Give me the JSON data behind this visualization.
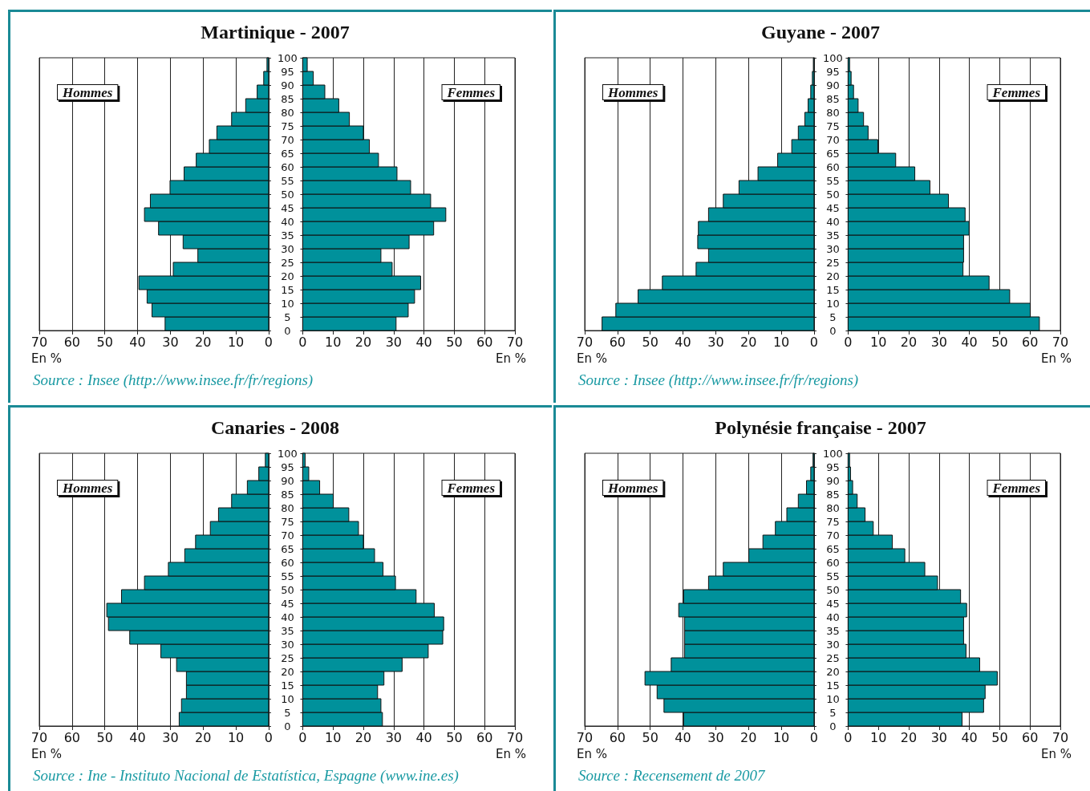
{
  "chart_data": [
    {
      "type": "bar",
      "orientation": "horizontal",
      "title": "Martinique - 2007",
      "xlabel": "En %",
      "annotations": [
        "Hommes",
        "Source : Insee (http://www.insee.fr/fr/regions)"
      ],
      "color": "#00919b",
      "x": [
        2.5,
        7.5,
        12.5,
        17.5,
        22.5,
        27.5,
        32.5,
        37.5,
        42.5,
        47.5,
        52.5,
        57.5,
        62.5,
        67.5,
        72.5,
        77.5,
        82.5,
        87.5,
        92.5,
        97.5
      ],
      "values": [
        31.6,
        35.6,
        37.1,
        39.6,
        29.1,
        21.6,
        26.1,
        33.6,
        37.9,
        36.1,
        30.1,
        25.8,
        22.1,
        18.1,
        15.8,
        11.3,
        7.0,
        3.5,
        1.5,
        0.5
      ],
      "xlim": [
        70,
        0
      ],
      "xticks": [
        0,
        10,
        20,
        30,
        40,
        50,
        60,
        70
      ],
      "ylim": [
        0,
        100
      ],
      "yticks": [
        0,
        5,
        10,
        15,
        20,
        25,
        30,
        35,
        40,
        45,
        50,
        55,
        60,
        65,
        70,
        75,
        80,
        85,
        90,
        95,
        100
      ],
      "grid": "x",
      "tick_labels": "x"
    },
    {
      "type": "bar",
      "orientation": "horizontal",
      "xlabel": "En %",
      "annotations": [
        "Femmes"
      ],
      "color": "#00919b",
      "x": [
        2.5,
        7.5,
        12.5,
        17.5,
        22.5,
        27.5,
        32.5,
        37.5,
        42.5,
        47.5,
        52.5,
        57.5,
        62.5,
        67.5,
        72.5,
        77.5,
        82.5,
        87.5,
        92.5,
        97.5
      ],
      "values": [
        30.8,
        34.8,
        36.9,
        38.9,
        29.5,
        25.8,
        35.1,
        43.2,
        47.2,
        42.2,
        35.6,
        31.1,
        25.0,
        22.0,
        20.0,
        15.4,
        11.9,
        7.3,
        3.5,
        1.5
      ],
      "xlim": [
        0,
        70
      ],
      "xticks": [
        0,
        10,
        20,
        30,
        40,
        50,
        60,
        70
      ],
      "ylim": [
        0,
        100
      ],
      "yticks": [
        0,
        5,
        10,
        15,
        20,
        25,
        30,
        35,
        40,
        45,
        50,
        55,
        60,
        65,
        70,
        75,
        80,
        85,
        90,
        95,
        100
      ],
      "grid": "x"
    },
    {
      "type": "bar",
      "orientation": "horizontal",
      "title": "Guyane - 2007",
      "xlabel": "En %",
      "annotations": [
        "Hommes",
        "Source : Insee (http://www.insee.fr/fr/regions)"
      ],
      "color": "#00919b",
      "x": [
        2.5,
        7.5,
        12.5,
        17.5,
        22.5,
        27.5,
        32.5,
        37.5,
        42.5,
        47.5,
        52.5,
        57.5,
        62.5,
        67.5,
        72.5,
        77.5,
        82.5,
        87.5,
        92.5,
        97.5
      ],
      "values": [
        64.7,
        60.5,
        53.7,
        46.3,
        36.0,
        32.2,
        35.5,
        35.3,
        32.2,
        27.7,
        22.9,
        17.1,
        11.1,
        6.8,
        4.8,
        2.8,
        1.8,
        1.0,
        0.5,
        0.2
      ],
      "xlim": [
        70,
        0
      ],
      "xticks": [
        0,
        10,
        20,
        30,
        40,
        50,
        60,
        70
      ],
      "ylim": [
        0,
        100
      ],
      "yticks": [
        0,
        5,
        10,
        15,
        20,
        25,
        30,
        35,
        40,
        45,
        50,
        55,
        60,
        65,
        70,
        75,
        80,
        85,
        90,
        95,
        100
      ],
      "grid": "x",
      "tick_labels": "x"
    },
    {
      "type": "bar",
      "orientation": "horizontal",
      "xlabel": "En %",
      "annotations": [
        "Femmes"
      ],
      "color": "#00919b",
      "x": [
        2.5,
        7.5,
        12.5,
        17.5,
        22.5,
        27.5,
        32.5,
        37.5,
        42.5,
        47.5,
        52.5,
        57.5,
        62.5,
        67.5,
        72.5,
        77.5,
        82.5,
        87.5,
        92.5,
        97.5
      ],
      "values": [
        63.1,
        60.1,
        53.3,
        46.5,
        37.9,
        38.1,
        38.1,
        39.9,
        38.6,
        33.1,
        27.0,
        22.0,
        15.7,
        9.8,
        6.6,
        5.1,
        3.3,
        1.8,
        1.0,
        0.5
      ],
      "xlim": [
        0,
        70
      ],
      "xticks": [
        0,
        10,
        20,
        30,
        40,
        50,
        60,
        70
      ],
      "ylim": [
        0,
        100
      ],
      "yticks": [
        0,
        5,
        10,
        15,
        20,
        25,
        30,
        35,
        40,
        45,
        50,
        55,
        60,
        65,
        70,
        75,
        80,
        85,
        90,
        95,
        100
      ],
      "grid": "x"
    },
    {
      "type": "bar",
      "orientation": "horizontal",
      "title": "Canaries - 2008",
      "xlabel": "En %",
      "annotations": [
        "Hommes",
        "Source : Ine - Instituto Nacional de Estatística, Espagne (www.ine.es)"
      ],
      "color": "#00919b",
      "x": [
        2.5,
        7.5,
        12.5,
        17.5,
        22.5,
        27.5,
        32.5,
        37.5,
        42.5,
        47.5,
        52.5,
        57.5,
        62.5,
        67.5,
        72.5,
        77.5,
        82.5,
        87.5,
        92.5,
        97.5
      ],
      "values": [
        27.3,
        26.6,
        25.1,
        25.1,
        28.1,
        32.9,
        42.4,
        48.9,
        49.4,
        44.9,
        37.9,
        30.6,
        25.6,
        22.3,
        17.8,
        15.3,
        11.3,
        6.5,
        3.0,
        1.0
      ],
      "xlim": [
        70,
        0
      ],
      "xticks": [
        0,
        10,
        20,
        30,
        40,
        50,
        60,
        70
      ],
      "ylim": [
        0,
        100
      ],
      "yticks": [
        0,
        5,
        10,
        15,
        20,
        25,
        30,
        35,
        40,
        45,
        50,
        55,
        60,
        65,
        70,
        75,
        80,
        85,
        90,
        95,
        100
      ],
      "grid": "x",
      "tick_labels": "x"
    },
    {
      "type": "bar",
      "orientation": "horizontal",
      "xlabel": "En %",
      "annotations": [
        "Femmes"
      ],
      "color": "#00919b",
      "x": [
        2.5,
        7.5,
        12.5,
        17.5,
        22.5,
        27.5,
        32.5,
        37.5,
        42.5,
        47.5,
        52.5,
        57.5,
        62.5,
        67.5,
        72.5,
        77.5,
        82.5,
        87.5,
        92.5,
        97.5
      ],
      "values": [
        26.3,
        25.8,
        24.7,
        26.8,
        32.8,
        41.4,
        46.2,
        46.5,
        43.4,
        37.4,
        30.6,
        26.5,
        23.7,
        20.0,
        18.4,
        15.2,
        10.1,
        5.6,
        2.0,
        0.8
      ],
      "xlim": [
        0,
        70
      ],
      "xticks": [
        0,
        10,
        20,
        30,
        40,
        50,
        60,
        70
      ],
      "ylim": [
        0,
        100
      ],
      "yticks": [
        0,
        5,
        10,
        15,
        20,
        25,
        30,
        35,
        40,
        45,
        50,
        55,
        60,
        65,
        70,
        75,
        80,
        85,
        90,
        95,
        100
      ],
      "grid": "x"
    },
    {
      "type": "bar",
      "orientation": "horizontal",
      "title": "Polynésie française - 2007",
      "xlabel": "En %",
      "annotations": [
        "Hommes",
        "Source : Recensement de 2007"
      ],
      "color": "#00919b",
      "x": [
        2.5,
        7.5,
        12.5,
        17.5,
        22.5,
        27.5,
        32.5,
        37.5,
        42.5,
        47.5,
        52.5,
        57.5,
        62.5,
        67.5,
        72.5,
        77.5,
        82.5,
        87.5,
        92.5,
        97.5
      ],
      "values": [
        39.8,
        45.8,
        47.9,
        51.6,
        43.6,
        39.5,
        39.5,
        39.5,
        41.3,
        39.8,
        32.2,
        27.7,
        19.9,
        15.6,
        11.8,
        8.3,
        4.8,
        2.3,
        1.0,
        0.3
      ],
      "xlim": [
        70,
        0
      ],
      "xticks": [
        0,
        10,
        20,
        30,
        40,
        50,
        60,
        70
      ],
      "ylim": [
        0,
        100
      ],
      "yticks": [
        0,
        5,
        10,
        15,
        20,
        25,
        30,
        35,
        40,
        45,
        50,
        55,
        60,
        65,
        70,
        75,
        80,
        85,
        90,
        95,
        100
      ],
      "grid": "x",
      "tick_labels": "x"
    },
    {
      "type": "bar",
      "orientation": "horizontal",
      "xlabel": "En %",
      "annotations": [
        "Femmes"
      ],
      "color": "#00919b",
      "x": [
        2.5,
        7.5,
        12.5,
        17.5,
        22.5,
        27.5,
        32.5,
        37.5,
        42.5,
        47.5,
        52.5,
        57.5,
        62.5,
        67.5,
        72.5,
        77.5,
        82.5,
        87.5,
        92.5,
        97.5
      ],
      "values": [
        37.6,
        44.7,
        45.2,
        49.2,
        43.4,
        38.9,
        38.1,
        38.1,
        39.1,
        37.1,
        29.5,
        25.3,
        18.7,
        14.6,
        8.3,
        5.6,
        3.0,
        1.5,
        0.8,
        0.5
      ],
      "xlim": [
        0,
        70
      ],
      "xticks": [
        0,
        10,
        20,
        30,
        40,
        50,
        60,
        70
      ],
      "ylim": [
        0,
        100
      ],
      "yticks": [
        0,
        5,
        10,
        15,
        20,
        25,
        30,
        35,
        40,
        45,
        50,
        55,
        60,
        65,
        70,
        75,
        80,
        85,
        90,
        95,
        100
      ],
      "grid": "x"
    }
  ]
}
